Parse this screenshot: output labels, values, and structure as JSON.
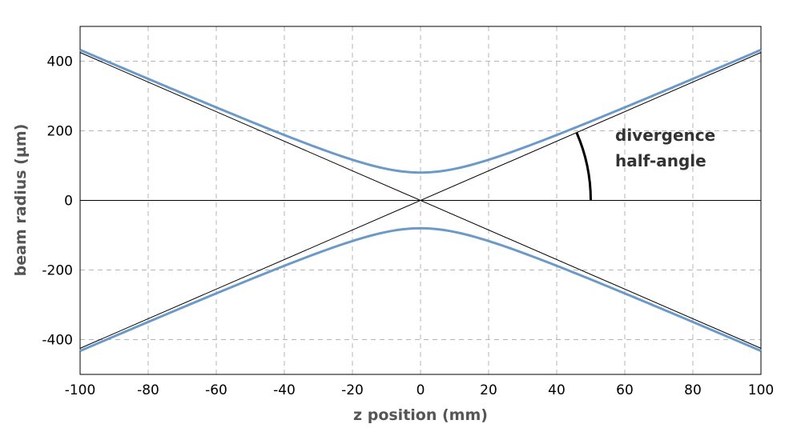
{
  "chart_data": {
    "type": "line",
    "xlabel": "z position (mm)",
    "ylabel": "beam radius (µm)",
    "xlim": [
      -100,
      100
    ],
    "ylim": [
      -500,
      500
    ],
    "x_ticks": [
      -100,
      -80,
      -60,
      -40,
      -20,
      0,
      20,
      40,
      60,
      80,
      100
    ],
    "y_ticks": [
      -400,
      -200,
      0,
      200,
      400
    ],
    "grid": true,
    "beam": {
      "waist_radius_um": 80,
      "asymptote_slope_um_per_mm": 4.25
    },
    "series": [
      {
        "color": "#6b9ac8",
        "x": [
          -100,
          -80,
          -60,
          -40,
          -20,
          0,
          20,
          40,
          60,
          80,
          100
        ],
        "y": [
          432,
          347,
          264,
          184,
          116,
          80,
          116,
          184,
          264,
          347,
          432
        ]
      },
      {
        "color": "#6b9ac8",
        "x": [
          -100,
          -80,
          -60,
          -40,
          -20,
          0,
          20,
          40,
          60,
          80,
          100
        ],
        "y": [
          -432,
          -347,
          -264,
          -184,
          -116,
          -80,
          -116,
          -184,
          -264,
          -347,
          -432
        ]
      },
      {
        "color": "#000000",
        "x": [
          -100,
          100
        ],
        "y": [
          425,
          -425
        ]
      },
      {
        "color": "#000000",
        "x": [
          -100,
          100
        ],
        "y": [
          -425,
          425
        ]
      },
      {
        "color": "#000000",
        "x": [
          -100,
          100
        ],
        "y": [
          0,
          0
        ]
      }
    ],
    "annotations": [
      {
        "text_lines": [
          "divergence",
          "half-angle"
        ],
        "arc_center": [
          0,
          0
        ],
        "arc_end": [
          50,
          0
        ]
      }
    ]
  }
}
